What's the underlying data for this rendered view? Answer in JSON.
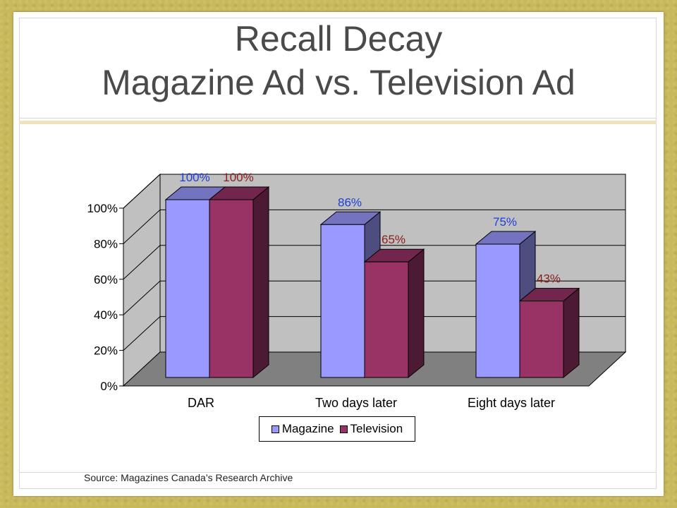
{
  "slide": {
    "title_line1": "Recall Decay",
    "title_line2": "Magazine Ad vs. Television Ad",
    "source": "Source: Magazines Canada’s Research Archive"
  },
  "chart_data": {
    "type": "bar",
    "categories": [
      "DAR",
      "Two days later",
      "Eight days later"
    ],
    "series": [
      {
        "name": "Magazine",
        "values": [
          100,
          86,
          75
        ],
        "labels": [
          "100%",
          "86%",
          "75%"
        ],
        "color": "#9999ff",
        "label_color": "#1f3fd6"
      },
      {
        "name": "Television",
        "values": [
          100,
          65,
          43
        ],
        "labels": [
          "100%",
          "65%",
          "43%"
        ],
        "color": "#993366",
        "label_color": "#8b1c1c"
      }
    ],
    "y_ticks": [
      "0%",
      "20%",
      "40%",
      "60%",
      "80%",
      "100%"
    ],
    "ylim": [
      0,
      100
    ],
    "grid": true,
    "legend_position": "bottom",
    "style": "3d-clustered-column",
    "wall_color": "#c0c0c0",
    "floor_color": "#808080"
  }
}
